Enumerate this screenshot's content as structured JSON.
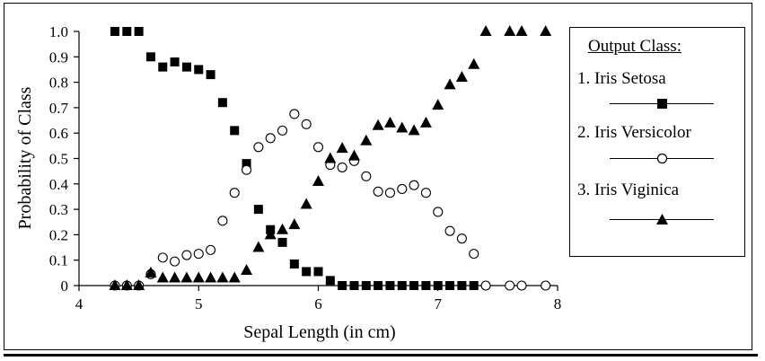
{
  "chart_data": {
    "type": "scatter",
    "title": "",
    "xlabel": "Sepal Length (in cm)",
    "ylabel": "Probability of Class",
    "xlim": [
      4,
      8
    ],
    "ylim": [
      0,
      1.0
    ],
    "x_ticks": [
      "4",
      "5",
      "6",
      "7",
      "8"
    ],
    "y_ticks": [
      "0",
      "0.1",
      "0.2",
      "0.3",
      "0.4",
      "0.5",
      "0.6",
      "0.7",
      "0.8",
      "0.9",
      "1.0"
    ],
    "grid": false,
    "legend": {
      "title": "Output Class:",
      "placement": "right",
      "entries": [
        "1. Iris Setosa",
        "2. Iris Versicolor",
        "3. Iris Viginica"
      ]
    },
    "series": [
      {
        "name": "1. Iris Setosa",
        "marker": "square",
        "points": [
          [
            4.3,
            1.0
          ],
          [
            4.4,
            1.0
          ],
          [
            4.5,
            1.0
          ],
          [
            4.6,
            0.9
          ],
          [
            4.7,
            0.86
          ],
          [
            4.8,
            0.88
          ],
          [
            4.9,
            0.86
          ],
          [
            5.0,
            0.85
          ],
          [
            5.1,
            0.83
          ],
          [
            5.2,
            0.72
          ],
          [
            5.3,
            0.61
          ],
          [
            5.4,
            0.48
          ],
          [
            5.5,
            0.3
          ],
          [
            5.6,
            0.22
          ],
          [
            5.7,
            0.17
          ],
          [
            5.8,
            0.085
          ],
          [
            5.9,
            0.055
          ],
          [
            6.0,
            0.055
          ],
          [
            6.1,
            0.02
          ],
          [
            6.2,
            0.0
          ],
          [
            6.3,
            0.0
          ],
          [
            6.4,
            0.0
          ],
          [
            6.5,
            0.0
          ],
          [
            6.6,
            0.0
          ],
          [
            6.7,
            0.0
          ],
          [
            6.8,
            0.0
          ],
          [
            6.9,
            0.0
          ],
          [
            7.0,
            0.0
          ],
          [
            7.1,
            0.0
          ],
          [
            7.2,
            0.0
          ],
          [
            7.3,
            0.0
          ]
        ]
      },
      {
        "name": "2. Iris Versicolor",
        "marker": "circle",
        "points": [
          [
            4.3,
            0.0
          ],
          [
            4.4,
            0.0
          ],
          [
            4.5,
            0.0
          ],
          [
            4.6,
            0.045
          ],
          [
            4.7,
            0.11
          ],
          [
            4.8,
            0.095
          ],
          [
            4.9,
            0.12
          ],
          [
            5.0,
            0.125
          ],
          [
            5.1,
            0.14
          ],
          [
            5.2,
            0.255
          ],
          [
            5.3,
            0.365
          ],
          [
            5.4,
            0.455
          ],
          [
            5.5,
            0.545
          ],
          [
            5.6,
            0.58
          ],
          [
            5.7,
            0.61
          ],
          [
            5.8,
            0.675
          ],
          [
            5.9,
            0.635
          ],
          [
            6.0,
            0.545
          ],
          [
            6.1,
            0.475
          ],
          [
            6.2,
            0.465
          ],
          [
            6.3,
            0.49
          ],
          [
            6.4,
            0.43
          ],
          [
            6.5,
            0.37
          ],
          [
            6.6,
            0.365
          ],
          [
            6.7,
            0.38
          ],
          [
            6.8,
            0.395
          ],
          [
            6.9,
            0.365
          ],
          [
            7.0,
            0.29
          ],
          [
            7.1,
            0.215
          ],
          [
            7.2,
            0.185
          ],
          [
            7.3,
            0.125
          ],
          [
            7.4,
            0.0
          ],
          [
            7.6,
            0.0
          ],
          [
            7.7,
            0.0
          ],
          [
            7.9,
            0.0
          ]
        ]
      },
      {
        "name": "3. Iris Viginica",
        "marker": "triangle",
        "points": [
          [
            4.3,
            0.0
          ],
          [
            4.4,
            0.0
          ],
          [
            4.5,
            0.0
          ],
          [
            4.6,
            0.05
          ],
          [
            4.7,
            0.03
          ],
          [
            4.8,
            0.03
          ],
          [
            4.9,
            0.03
          ],
          [
            5.0,
            0.03
          ],
          [
            5.1,
            0.03
          ],
          [
            5.2,
            0.03
          ],
          [
            5.3,
            0.03
          ],
          [
            5.4,
            0.06
          ],
          [
            5.5,
            0.15
          ],
          [
            5.6,
            0.2
          ],
          [
            5.7,
            0.22
          ],
          [
            5.8,
            0.24
          ],
          [
            5.9,
            0.32
          ],
          [
            6.0,
            0.41
          ],
          [
            6.1,
            0.5
          ],
          [
            6.2,
            0.54
          ],
          [
            6.3,
            0.51
          ],
          [
            6.4,
            0.57
          ],
          [
            6.5,
            0.63
          ],
          [
            6.6,
            0.64
          ],
          [
            6.7,
            0.62
          ],
          [
            6.8,
            0.61
          ],
          [
            6.9,
            0.64
          ],
          [
            7.0,
            0.71
          ],
          [
            7.1,
            0.79
          ],
          [
            7.2,
            0.82
          ],
          [
            7.3,
            0.87
          ],
          [
            7.4,
            1.0
          ],
          [
            7.6,
            1.0
          ],
          [
            7.7,
            1.0
          ],
          [
            7.9,
            1.0
          ]
        ]
      }
    ]
  }
}
